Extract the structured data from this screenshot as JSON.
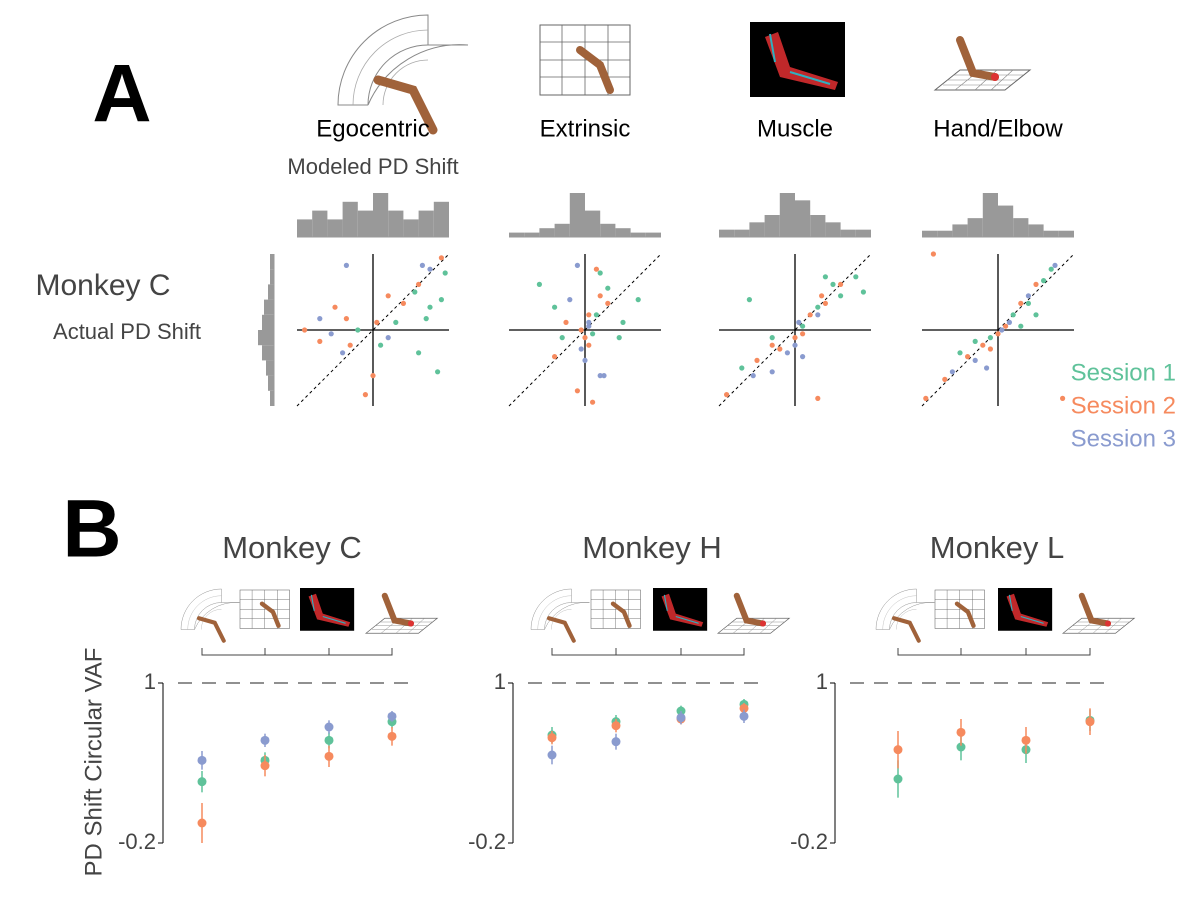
{
  "figure": {
    "panel_labels": [
      "A",
      "B"
    ]
  },
  "chart_data": [
    {
      "type": "scatter",
      "title": "Egocentric",
      "xlabel": "Modeled PD Shift",
      "row_label": "Monkey C",
      "ylabel": "Actual PD Shift",
      "xlim": [
        -1,
        1
      ],
      "ylim": [
        -1,
        1
      ],
      "x_hist_bins": [
        -1,
        -0.8,
        -0.6,
        -0.4,
        -0.2,
        0,
        0.2,
        0.4,
        0.6,
        0.8,
        1
      ],
      "x_hist": [
        2,
        3,
        2,
        4,
        3,
        5,
        3,
        2,
        3,
        4
      ],
      "y_hist_bins": [
        -1,
        -0.8,
        -0.6,
        -0.4,
        -0.2,
        0,
        0.2,
        0.4,
        0.6,
        0.8,
        1
      ],
      "y_hist": [
        2,
        3,
        4,
        6,
        8,
        6,
        5,
        3,
        2,
        2
      ],
      "series": [
        {
          "name": "Session 1",
          "color": "#5fc29a",
          "x": [
            0.9,
            0.75,
            0.6,
            0.85,
            0.3,
            -0.2,
            0.55,
            0.95,
            0.1,
            0.7
          ],
          "y": [
            0.4,
            0.3,
            -0.3,
            -0.55,
            0.1,
            0.0,
            0.5,
            0.75,
            -0.2,
            0.15
          ]
        },
        {
          "name": "Session 2",
          "color": "#f68a5e",
          "x": [
            -0.9,
            -0.5,
            -0.3,
            0.0,
            0.2,
            0.4,
            -0.7,
            0.05,
            -0.1,
            0.6,
            0.9,
            -0.35
          ],
          "y": [
            0.0,
            0.3,
            -0.2,
            -0.6,
            0.45,
            0.35,
            -0.15,
            0.1,
            -0.85,
            0.6,
            0.95,
            0.15
          ]
        },
        {
          "name": "Session 3",
          "color": "#8a9bcf",
          "x": [
            -0.7,
            -0.35,
            0.65,
            -0.55,
            0.2,
            -0.4,
            0.75
          ],
          "y": [
            0.15,
            0.85,
            0.85,
            -0.05,
            -0.1,
            -0.3,
            0.8
          ]
        }
      ]
    },
    {
      "type": "scatter",
      "title": "Extrinsic",
      "xlim": [
        -1,
        1
      ],
      "ylim": [
        -1,
        1
      ],
      "x_hist_bins": [
        -1,
        -0.8,
        -0.6,
        -0.4,
        -0.2,
        0,
        0.2,
        0.4,
        0.6,
        0.8,
        1
      ],
      "x_hist": [
        1,
        1,
        2,
        3,
        10,
        6,
        3,
        2,
        1,
        1
      ],
      "series": [
        {
          "name": "Session 1",
          "color": "#5fc29a",
          "x": [
            -0.6,
            0.3,
            0.5,
            -0.3,
            0.7,
            0.15,
            0.1,
            -0.4,
            0.2,
            0.45
          ],
          "y": [
            0.6,
            0.55,
            0.1,
            -0.1,
            0.4,
            0.2,
            -0.05,
            0.3,
            0.75,
            -0.1
          ]
        },
        {
          "name": "Session 2",
          "color": "#f68a5e",
          "x": [
            -0.05,
            0.05,
            -0.1,
            0.15,
            0.2,
            -0.25,
            0.0,
            0.1,
            -0.4,
            0.3,
            0.05
          ],
          "y": [
            0.0,
            -0.2,
            -0.8,
            0.8,
            0.45,
            0.1,
            -0.1,
            -0.95,
            -0.35,
            0.35,
            0.2
          ]
        },
        {
          "name": "Session 3",
          "color": "#8a9bcf",
          "x": [
            -0.1,
            0.05,
            0.0,
            -0.2,
            0.2,
            0.25,
            0.05,
            -0.05
          ],
          "y": [
            0.85,
            0.05,
            -0.4,
            0.4,
            -0.6,
            -0.6,
            0.1,
            -0.25
          ]
        }
      ]
    },
    {
      "type": "scatter",
      "title": "Muscle",
      "xlim": [
        -1,
        1
      ],
      "ylim": [
        -1,
        1
      ],
      "x_hist_bins": [
        -1,
        -0.8,
        -0.6,
        -0.4,
        -0.2,
        0,
        0.2,
        0.4,
        0.6,
        0.8,
        1
      ],
      "x_hist": [
        1,
        1,
        2,
        3,
        6,
        5,
        3,
        2,
        1,
        1
      ],
      "series": [
        {
          "name": "Session 1",
          "color": "#5fc29a",
          "x": [
            -0.6,
            -0.3,
            0.3,
            0.6,
            0.8,
            0.5,
            -0.7,
            0.1,
            0.4,
            0.9
          ],
          "y": [
            0.4,
            -0.1,
            0.3,
            0.45,
            0.7,
            0.6,
            -0.5,
            0.05,
            0.7,
            0.5
          ]
        },
        {
          "name": "Session 2",
          "color": "#f68a5e",
          "x": [
            -0.9,
            -0.5,
            -0.2,
            0.0,
            0.2,
            0.4,
            0.6,
            -0.3,
            0.1,
            0.35,
            0.3
          ],
          "y": [
            -0.85,
            -0.4,
            -0.25,
            -0.1,
            0.2,
            0.35,
            0.6,
            -0.2,
            -0.05,
            0.45,
            -0.9
          ]
        },
        {
          "name": "Session 3",
          "color": "#8a9bcf",
          "x": [
            -0.55,
            -0.1,
            0.05,
            0.3,
            -0.3,
            0.1,
            0.0
          ],
          "y": [
            -0.6,
            -0.3,
            0.1,
            0.2,
            -0.55,
            -0.35,
            -0.2
          ]
        }
      ]
    },
    {
      "type": "scatter",
      "title": "Hand/Elbow",
      "xlim": [
        -1,
        1
      ],
      "ylim": [
        -1,
        1
      ],
      "legend": "right",
      "x_hist_bins": [
        -1,
        -0.8,
        -0.6,
        -0.4,
        -0.2,
        0,
        0.2,
        0.4,
        0.6,
        0.8,
        1
      ],
      "x_hist": [
        1,
        1,
        2,
        3,
        7,
        5,
        3,
        2,
        1,
        1
      ],
      "series": [
        {
          "name": "Session 1",
          "color": "#5fc29a",
          "x": [
            -0.5,
            -0.3,
            0.2,
            0.4,
            0.6,
            0.7,
            0.3,
            0.5,
            -0.1
          ],
          "y": [
            -0.3,
            -0.15,
            0.2,
            0.35,
            0.65,
            0.8,
            0.05,
            0.2,
            -0.1
          ]
        },
        {
          "name": "Session 2",
          "color": "#f68a5e",
          "x": [
            -0.95,
            -0.7,
            -0.4,
            -0.2,
            0.0,
            0.1,
            0.3,
            0.5,
            -0.85,
            0.85,
            -0.1
          ],
          "y": [
            -0.9,
            -0.65,
            -0.35,
            -0.2,
            -0.05,
            0.05,
            0.35,
            0.6,
            1.0,
            -0.9,
            -0.25
          ]
        },
        {
          "name": "Session 3",
          "color": "#8a9bcf",
          "x": [
            -0.6,
            -0.3,
            -0.15,
            0.05,
            0.15,
            0.4,
            0.75
          ],
          "y": [
            -0.55,
            -0.4,
            -0.5,
            0.0,
            0.1,
            0.45,
            0.85
          ]
        }
      ]
    },
    {
      "type": "dot",
      "title": "Monkey C",
      "ylabel": "PD Shift Circular VAF",
      "categories": [
        null,
        null,
        null,
        null
      ],
      "ylim": [
        -0.2,
        1
      ],
      "yticks": [
        -0.2,
        1
      ],
      "series": [
        {
          "name": "Session 1",
          "color": "#5fc29a",
          "values": [
            0.26,
            0.42,
            0.57,
            0.71
          ],
          "errors": [
            0.08,
            0.06,
            0.06,
            0.05
          ]
        },
        {
          "name": "Session 2",
          "color": "#f68a5e",
          "values": [
            -0.05,
            0.38,
            0.45,
            0.6
          ],
          "errors": [
            0.15,
            0.08,
            0.08,
            0.07
          ]
        },
        {
          "name": "Session 3",
          "color": "#8a9bcf",
          "values": [
            0.42,
            0.57,
            0.67,
            0.75
          ],
          "errors": [
            0.07,
            0.05,
            0.05,
            0.04
          ]
        }
      ]
    },
    {
      "type": "dot",
      "title": "Monkey H",
      "categories": [
        null,
        null,
        null,
        null
      ],
      "ylim": [
        -0.2,
        1
      ],
      "yticks": [
        -0.2,
        1
      ],
      "series": [
        {
          "name": "Session 1",
          "color": "#5fc29a",
          "values": [
            0.61,
            0.71,
            0.79,
            0.84
          ],
          "errors": [
            0.06,
            0.05,
            0.04,
            0.04
          ]
        },
        {
          "name": "Session 2",
          "color": "#f68a5e",
          "values": [
            0.59,
            0.68,
            0.73,
            0.81
          ],
          "errors": [
            0.05,
            0.05,
            0.04,
            0.04
          ]
        },
        {
          "name": "Session 3",
          "color": "#8a9bcf",
          "values": [
            0.46,
            0.56,
            0.74,
            0.75
          ],
          "errors": [
            0.07,
            0.06,
            0.05,
            0.05
          ]
        }
      ]
    },
    {
      "type": "dot",
      "title": "Monkey L",
      "categories": [
        null,
        null,
        null,
        null
      ],
      "ylim": [
        -0.2,
        1
      ],
      "yticks": [
        -0.2,
        1
      ],
      "series": [
        {
          "name": "Session 1",
          "color": "#5fc29a",
          "values": [
            0.28,
            0.52,
            0.5,
            0.72
          ],
          "errors": [
            0.14,
            0.1,
            0.1,
            0.08
          ]
        },
        {
          "name": "Session 2",
          "color": "#f68a5e",
          "values": [
            0.5,
            0.63,
            0.57,
            0.71
          ],
          "errors": [
            0.14,
            0.1,
            0.1,
            0.1
          ]
        }
      ]
    }
  ]
}
